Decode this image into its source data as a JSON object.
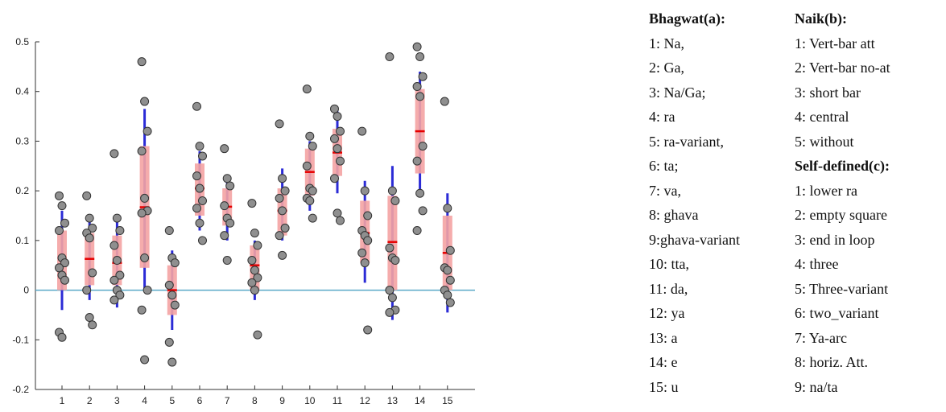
{
  "chart_data": {
    "type": "box",
    "categories": [
      "1",
      "2",
      "3",
      "4",
      "5",
      "6",
      "7",
      "8",
      "9",
      "10",
      "11",
      "12",
      "13",
      "14",
      "15"
    ],
    "ylim": [
      -0.2,
      0.5
    ],
    "yticks": [
      -0.2,
      -0.1,
      0,
      0.1,
      0.2,
      0.3,
      0.4,
      0.5
    ],
    "ytick_labels": [
      "-0.2",
      "-0.1",
      "0",
      "0.1",
      "0.2",
      "0.3",
      "0.4",
      "0.5"
    ],
    "baseline": 0,
    "colors": {
      "box": "#f4a3a3",
      "median": "#e60000",
      "whisker": "#2b2bd6",
      "point": "#8f8f8f",
      "point_edge": "#333333",
      "baseline": "#5aa9c8",
      "axis": "#333333"
    },
    "groups": [
      {
        "q1": 0.0,
        "median": 0.05,
        "q3": 0.12,
        "whisker": [
          -0.04,
          0.16
        ],
        "points": [
          0.19,
          0.17,
          0.135,
          0.12,
          0.065,
          0.055,
          0.045,
          0.03,
          0.02,
          -0.085,
          -0.095
        ]
      },
      {
        "q1": 0.01,
        "median": 0.063,
        "q3": 0.115,
        "whisker": [
          -0.02,
          0.15
        ],
        "points": [
          0.19,
          0.145,
          0.125,
          0.115,
          0.105,
          0.035,
          0.0,
          -0.055,
          -0.07
        ]
      },
      {
        "q1": 0.01,
        "median": 0.055,
        "q3": 0.11,
        "whisker": [
          -0.035,
          0.15
        ],
        "points": [
          0.275,
          0.145,
          0.12,
          0.09,
          0.06,
          0.03,
          0.02,
          0.0,
          -0.01,
          -0.02
        ]
      },
      {
        "q1": 0.045,
        "median": 0.167,
        "q3": 0.29,
        "whisker": [
          0.0,
          0.365
        ],
        "points": [
          0.46,
          0.38,
          0.32,
          0.28,
          0.185,
          0.16,
          0.155,
          0.065,
          0.0,
          -0.04,
          -0.14
        ]
      },
      {
        "q1": -0.05,
        "median": 0.0,
        "q3": 0.05,
        "whisker": [
          -0.08,
          0.08
        ],
        "points": [
          0.12,
          0.065,
          0.055,
          0.01,
          -0.01,
          -0.03,
          -0.105,
          -0.145
        ]
      },
      {
        "q1": 0.15,
        "median": 0.205,
        "q3": 0.255,
        "whisker": [
          0.12,
          0.28
        ],
        "points": [
          0.37,
          0.29,
          0.27,
          0.23,
          0.205,
          0.18,
          0.165,
          0.135,
          0.1
        ]
      },
      {
        "q1": 0.13,
        "median": 0.168,
        "q3": 0.205,
        "whisker": [
          0.1,
          0.225
        ],
        "points": [
          0.285,
          0.225,
          0.21,
          0.17,
          0.145,
          0.135,
          0.11,
          0.06
        ]
      },
      {
        "q1": 0.0,
        "median": 0.05,
        "q3": 0.09,
        "whisker": [
          -0.02,
          0.1
        ],
        "points": [
          0.175,
          0.115,
          0.09,
          0.06,
          0.04,
          0.025,
          0.015,
          0.0,
          -0.09
        ]
      },
      {
        "q1": 0.11,
        "median": 0.16,
        "q3": 0.205,
        "whisker": [
          0.1,
          0.245
        ],
        "points": [
          0.335,
          0.225,
          0.2,
          0.185,
          0.16,
          0.125,
          0.11,
          0.07
        ]
      },
      {
        "q1": 0.19,
        "median": 0.238,
        "q3": 0.285,
        "whisker": [
          0.16,
          0.3
        ],
        "points": [
          0.405,
          0.31,
          0.29,
          0.25,
          0.205,
          0.2,
          0.185,
          0.18,
          0.145
        ]
      },
      {
        "q1": 0.23,
        "median": 0.277,
        "q3": 0.325,
        "whisker": [
          0.195,
          0.36
        ],
        "points": [
          0.365,
          0.35,
          0.32,
          0.305,
          0.285,
          0.26,
          0.225,
          0.155,
          0.14
        ]
      },
      {
        "q1": 0.055,
        "median": 0.115,
        "q3": 0.18,
        "whisker": [
          0.015,
          0.22
        ],
        "points": [
          0.32,
          0.2,
          0.15,
          0.12,
          0.11,
          0.1,
          0.075,
          0.055,
          -0.08
        ]
      },
      {
        "q1": 0.0,
        "median": 0.097,
        "q3": 0.19,
        "whisker": [
          -0.06,
          0.25
        ],
        "points": [
          0.47,
          0.2,
          0.18,
          0.085,
          0.065,
          0.06,
          0.0,
          -0.015,
          -0.04,
          -0.045
        ]
      },
      {
        "q1": 0.235,
        "median": 0.32,
        "q3": 0.405,
        "whisker": [
          0.19,
          0.44
        ],
        "points": [
          0.49,
          0.47,
          0.43,
          0.41,
          0.39,
          0.29,
          0.26,
          0.195,
          0.16,
          0.12
        ]
      },
      {
        "q1": 0.0,
        "median": 0.075,
        "q3": 0.15,
        "whisker": [
          -0.045,
          0.195
        ],
        "points": [
          0.38,
          0.165,
          0.08,
          0.045,
          0.04,
          0.02,
          0.0,
          -0.01,
          -0.025
        ]
      }
    ]
  },
  "legend": {
    "col1": [
      {
        "text": "Bhagwat(a):",
        "bold": true
      },
      {
        "text": "1: Na,"
      },
      {
        "text": "2: Ga,"
      },
      {
        "text": "3: Na/Ga;"
      },
      {
        "text": "4: ra"
      },
      {
        "text": "5: ra-variant,"
      },
      {
        "text": "6: ta;"
      },
      {
        "text": "7: va,"
      },
      {
        "text": "8: ghava"
      },
      {
        "text": "9:ghava-variant"
      },
      {
        "text": "10: tta,"
      },
      {
        "text": "11: da,"
      },
      {
        "text": "12: ya"
      },
      {
        "text": "13: a"
      },
      {
        "text": "14: e"
      },
      {
        "text": "15: u"
      }
    ],
    "col2": [
      {
        "text": "Naik(b):",
        "bold": true
      },
      {
        "text": "1: Vert-bar att"
      },
      {
        "text": "2: Vert-bar no-at"
      },
      {
        "text": "3: short bar"
      },
      {
        "text": "4: central"
      },
      {
        "text": "5: without"
      },
      {
        "text": "Self-defined(c):",
        "bold": true
      },
      {
        "text": "1: lower ra"
      },
      {
        "text": "2: empty square"
      },
      {
        "text": "3: end in loop"
      },
      {
        "text": "4: three"
      },
      {
        "text": "5: Three-variant"
      },
      {
        "text": "6: two_variant"
      },
      {
        "text": "7: Ya-arc"
      },
      {
        "text": "8: horiz. Att."
      },
      {
        "text": "9: na/ta"
      }
    ]
  }
}
